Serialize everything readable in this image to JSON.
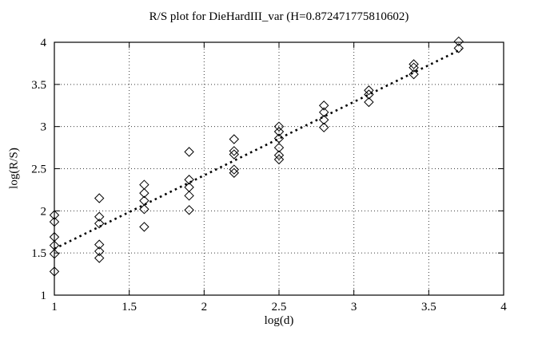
{
  "figure": {
    "background": "#ffffff",
    "axis_color": "#000000",
    "grid_color": "#3a3a3a",
    "marker_color": "#000000",
    "fit_line_color": "#000000"
  },
  "chart_data": {
    "type": "scatter",
    "title": "R/S plot for DieHardIII_var (H=0.872471775810602)",
    "hurst_exponent_shown_in_title": "0.872471775810602",
    "xlabel": "log(d)",
    "ylabel": "log(R/S)",
    "xlim": [
      1,
      4
    ],
    "ylim": [
      1,
      4
    ],
    "xticks": {
      "values": [
        1,
        1.5,
        2,
        2.5,
        3,
        3.5,
        4
      ],
      "labels": [
        "1",
        "1.5",
        "2",
        "2.5",
        "3",
        "3.5",
        "4"
      ]
    },
    "yticks": {
      "values": [
        1,
        1.5,
        2,
        2.5,
        3,
        3.5,
        4
      ],
      "labels": [
        "1",
        "1.5",
        "2",
        "2.5",
        "3",
        "3.5",
        "4"
      ]
    },
    "grid": true,
    "legend_position": "none",
    "marker_style": "open-diamond",
    "series": [
      {
        "name": "R/S estimates",
        "type": "scatter",
        "points": [
          [
            1.0,
            1.95
          ],
          [
            1.0,
            1.87
          ],
          [
            1.0,
            1.69
          ],
          [
            1.0,
            1.59
          ],
          [
            1.0,
            1.49
          ],
          [
            1.0,
            1.28
          ],
          [
            1.3,
            2.15
          ],
          [
            1.3,
            1.93
          ],
          [
            1.3,
            1.85
          ],
          [
            1.3,
            1.6
          ],
          [
            1.3,
            1.52
          ],
          [
            1.3,
            1.44
          ],
          [
            1.6,
            2.31
          ],
          [
            1.6,
            2.21
          ],
          [
            1.6,
            2.12
          ],
          [
            1.6,
            2.02
          ],
          [
            1.6,
            1.81
          ],
          [
            1.9,
            2.7
          ],
          [
            1.9,
            2.37
          ],
          [
            1.9,
            2.28
          ],
          [
            1.9,
            2.18
          ],
          [
            1.9,
            2.01
          ],
          [
            2.2,
            2.85
          ],
          [
            2.2,
            2.71
          ],
          [
            2.2,
            2.67
          ],
          [
            2.2,
            2.49
          ],
          [
            2.2,
            2.45
          ],
          [
            2.5,
            3.0
          ],
          [
            2.5,
            2.94
          ],
          [
            2.5,
            2.86
          ],
          [
            2.5,
            2.75
          ],
          [
            2.5,
            2.66
          ],
          [
            2.5,
            2.61
          ],
          [
            2.8,
            3.25
          ],
          [
            2.8,
            3.17
          ],
          [
            2.8,
            3.08
          ],
          [
            2.8,
            2.99
          ],
          [
            3.1,
            3.43
          ],
          [
            3.1,
            3.38
          ],
          [
            3.1,
            3.29
          ],
          [
            3.4,
            3.74
          ],
          [
            3.4,
            3.7
          ],
          [
            3.4,
            3.62
          ],
          [
            3.7,
            4.01
          ],
          [
            3.7,
            3.93
          ]
        ]
      },
      {
        "name": "linear fit (slope = H)",
        "type": "line",
        "style": "dotted",
        "points": [
          [
            1.0,
            1.55
          ],
          [
            3.72,
            3.92
          ]
        ]
      }
    ]
  }
}
